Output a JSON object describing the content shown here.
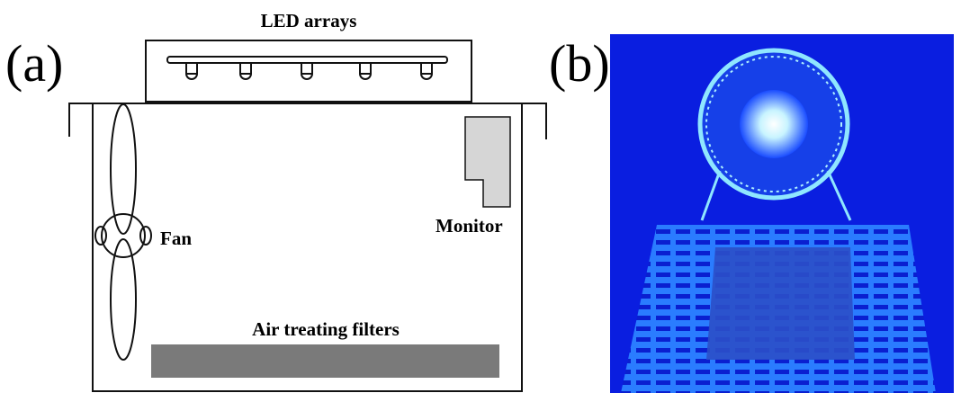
{
  "panels": {
    "a": "(a)",
    "b": "(b)"
  },
  "diagram": {
    "led": "LED arrays",
    "fan": "Fan",
    "monitor": "Monitor",
    "filters": "Air treating filters"
  }
}
